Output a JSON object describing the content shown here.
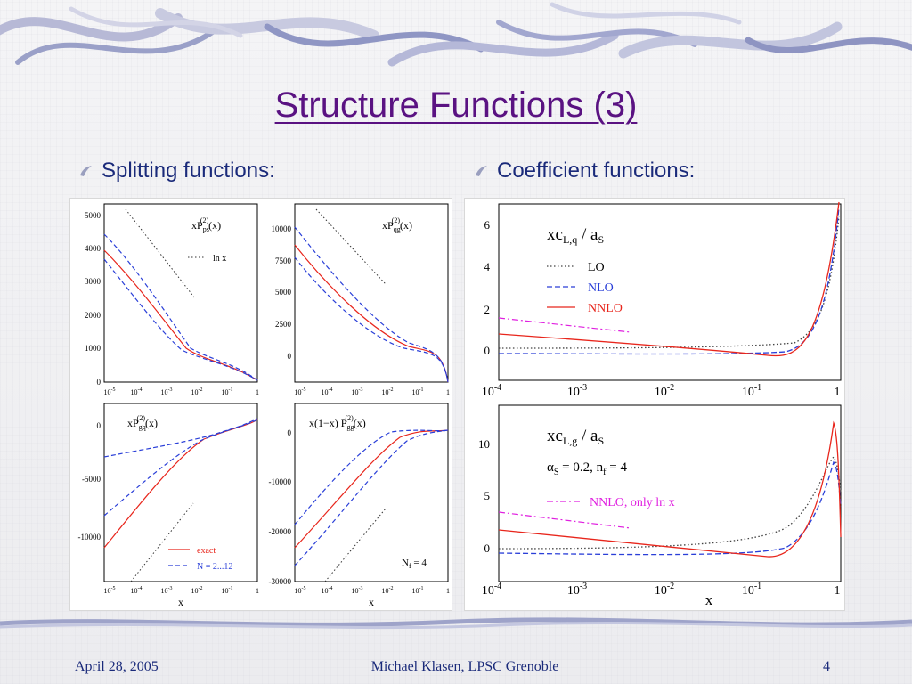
{
  "slide": {
    "title": "Structure Functions (3)",
    "bullets": [
      "Splitting functions:",
      "Coefficient functions:"
    ],
    "footer": {
      "date": "April 28, 2005",
      "author": "Michael Klasen, LPSC Grenoble",
      "page": "4"
    }
  },
  "colors": {
    "title": "#5a1282",
    "text": "#1a2a7a",
    "exact": "#e8261c",
    "approx": "#2a3fd8",
    "lo": "#333333",
    "lnx": "#e020e0"
  },
  "splitting_panels": {
    "x_ticks": [
      "10",
      "10",
      "10",
      "10",
      "10",
      "1"
    ],
    "x_exps": [
      "-5",
      "-4",
      "-3",
      "-2",
      "-1",
      ""
    ],
    "xlabel": "x",
    "pps": {
      "title_main": "xP",
      "title_sub": "ps",
      "title_sup": "(2)",
      "title_tail": "(x)",
      "yticks": [
        "0",
        "1000",
        "2000",
        "3000",
        "4000",
        "5000"
      ],
      "legend_ln": "ln x"
    },
    "pqg": {
      "title_main": "xP",
      "title_sub": "qg",
      "title_sup": "(2)",
      "title_tail": "(x)",
      "yticks": [
        "0",
        "2500",
        "5000",
        "7500",
        "10000"
      ]
    },
    "pgq": {
      "title_main": "xP",
      "title_sub": "gq",
      "title_sup": "(2)",
      "title_tail": "(x)",
      "yticks": [
        "0",
        "-5000",
        "-10000"
      ],
      "legend_exact": "exact",
      "legend_approx": "N = 2...12"
    },
    "pgg": {
      "title_main": "x(1−x) P",
      "title_sub": "gg",
      "title_sup": "(2)",
      "title_tail": "(x)",
      "yticks": [
        "0",
        "-10000",
        "-20000",
        "-30000"
      ],
      "nf_label": "N",
      "nf_sub": "f",
      "nf_val": " = 4"
    }
  },
  "coefficient_panels": {
    "x_exps": [
      "-4",
      "-3",
      "-2",
      "-1",
      ""
    ],
    "x_base": "10",
    "x_last": "1",
    "xlabel": "x",
    "top": {
      "title": "xc",
      "title_sub": "L,q",
      "title_tail": " / a",
      "title_tail_sub": "S",
      "yticks": [
        "0",
        "2",
        "4",
        "6"
      ],
      "legend": [
        "LO",
        "NLO",
        "NNLO"
      ]
    },
    "bottom": {
      "title": "xc",
      "title_sub": "L,g",
      "title_tail": " / a",
      "title_tail_sub": "S",
      "yticks": [
        "0",
        "5",
        "10"
      ],
      "param": "α",
      "param_sub": "S",
      "param_tail": " = 0.2, n",
      "param_sub2": "f",
      "param_tail2": " = 4",
      "legend_lnx": "NNLO, only ln x"
    }
  }
}
